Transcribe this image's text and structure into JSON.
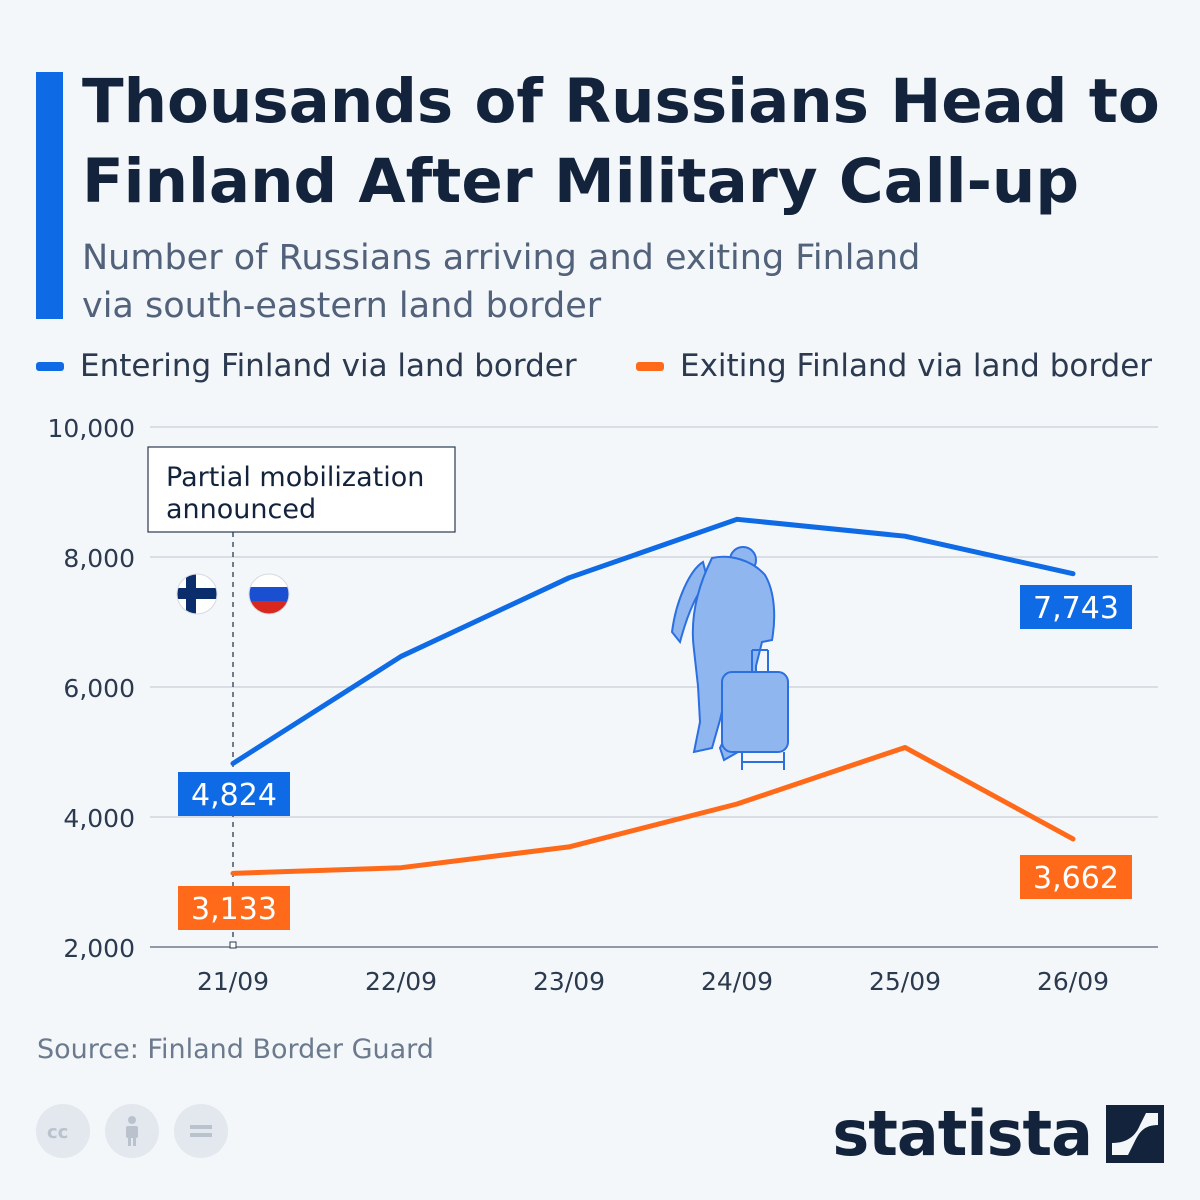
{
  "header": {
    "title": "Thousands of Russians Head to Finland After Military Call-up",
    "subtitle": "Number of Russians arriving and exiting Finland via south-eastern land border"
  },
  "colors": {
    "entering": "#0f6ae6",
    "exiting": "#ff6a1a",
    "accent": "#0f6ae6",
    "title": "#13233c",
    "background": "#f4f7fa"
  },
  "icons": [
    "finland-flag-icon",
    "russia-flag-icon",
    "traveler-with-suitcase-icon",
    "cc-icon",
    "attribution-icon",
    "no-derivatives-icon",
    "statista-logo-icon"
  ],
  "annotation": "Partial mobilization announced",
  "source": "Source: Finland Border Guard",
  "brand": "statista",
  "chart_data": {
    "type": "line",
    "categories": [
      "21/09",
      "22/09",
      "23/09",
      "24/09",
      "25/09",
      "26/09"
    ],
    "series": [
      {
        "name": "Entering Finland via land border",
        "values": [
          4824,
          6470,
          7680,
          8580,
          8320,
          7743
        ]
      },
      {
        "name": "Exiting Finland via land border",
        "values": [
          3133,
          3220,
          3540,
          4200,
          5070,
          3662
        ]
      }
    ],
    "value_labels": [
      {
        "series": 0,
        "index": 0,
        "text": "4,824"
      },
      {
        "series": 0,
        "index": 5,
        "text": "7,743"
      },
      {
        "series": 1,
        "index": 0,
        "text": "3,133"
      },
      {
        "series": 1,
        "index": 5,
        "text": "3,662"
      }
    ],
    "yticks": [
      2000,
      4000,
      6000,
      8000,
      10000
    ],
    "ytick_labels": [
      "2,000",
      "4,000",
      "6,000",
      "8,000",
      "10,000"
    ],
    "ylim": [
      2000,
      10000
    ],
    "grid": true,
    "legend_position": "top-left"
  }
}
